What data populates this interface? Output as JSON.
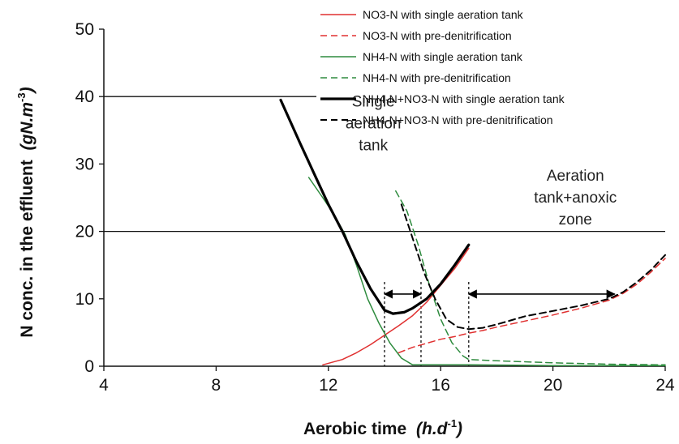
{
  "chart_data": {
    "type": "line",
    "title": "",
    "xlabel": "Aerobic time",
    "xlabel_unit": "(h.d",
    "xlabel_unit_sup": "-1",
    "xlabel_unit_close": ")",
    "ylabel": "N conc. in the effluent",
    "ylabel_unit": "(gN.m",
    "ylabel_unit_sup": "-3",
    "ylabel_unit_close": ")",
    "xlim": [
      4,
      24
    ],
    "ylim": [
      0,
      50
    ],
    "x_ticks": [
      "4",
      "8",
      "12",
      "16",
      "20",
      "24"
    ],
    "y_ticks": [
      "0",
      "10",
      "20",
      "30",
      "40",
      "50"
    ],
    "grid": false,
    "legend_position": "top-right",
    "reference_lines": [
      40,
      20
    ],
    "series": [
      {
        "name": "NO3-N with single aeration tank",
        "color": "#e03030",
        "dash": "solid",
        "width": 1.5,
        "x": [
          11.8,
          12.5,
          13,
          13.5,
          14,
          14.5,
          15,
          15.5,
          16,
          16.5,
          17
        ],
        "y": [
          0.2,
          1,
          2,
          3.2,
          4.6,
          6,
          7.5,
          9.5,
          12,
          14.5,
          17.5
        ]
      },
      {
        "name": "NO3-N with pre-denitrification",
        "color": "#e03030",
        "dash": "dashed",
        "width": 1.5,
        "x": [
          14.5,
          15,
          15.5,
          16,
          16.5,
          17,
          17.5,
          18,
          19,
          20,
          21,
          22,
          22.5,
          23,
          23.5,
          24
        ],
        "y": [
          2,
          2.8,
          3.4,
          4,
          4.4,
          4.9,
          5.3,
          5.8,
          6.7,
          7.6,
          8.6,
          9.8,
          10.8,
          12.2,
          14,
          16
        ]
      },
      {
        "name": "NH4-N with single aeration tank",
        "color": "#2e8b3e",
        "dash": "solid",
        "width": 1.5,
        "x": [
          11.3,
          11.8,
          12.2,
          12.6,
          13,
          13.4,
          13.8,
          14.2,
          14.6,
          15,
          17,
          20,
          24
        ],
        "y": [
          28,
          25,
          22.5,
          19.5,
          15,
          10,
          6.4,
          3.4,
          1.2,
          0.2,
          0.2,
          0.1,
          0.1
        ]
      },
      {
        "name": "NH4-N with pre-denitrification",
        "color": "#2e8b3e",
        "dash": "dashed",
        "width": 1.5,
        "x": [
          14.4,
          14.8,
          15.2,
          15.6,
          16,
          16.4,
          16.8,
          17,
          18,
          20,
          22,
          24
        ],
        "y": [
          26,
          23,
          18,
          12,
          7,
          3.5,
          1.5,
          1,
          0.8,
          0.5,
          0.3,
          0.2
        ]
      },
      {
        "name": "NH4-N+NO3-N with single aeration tank",
        "color": "#000000",
        "dash": "solid",
        "width": 3.2,
        "x": [
          10.3,
          11,
          11.5,
          12,
          12.5,
          13,
          13.5,
          14,
          14.3,
          14.7,
          15,
          15.5,
          16,
          16.5,
          17
        ],
        "y": [
          39.5,
          33,
          28.5,
          24,
          20,
          15.5,
          11.5,
          8.3,
          7.8,
          8,
          8.6,
          10,
          12.2,
          15,
          18
        ]
      },
      {
        "name": "NH4-N+NO3-N with pre-denitrification",
        "color": "#000000",
        "dash": "dashed",
        "width": 2,
        "x": [
          14.6,
          15,
          15.4,
          15.8,
          16.2,
          16.6,
          17,
          17.5,
          18,
          19,
          20,
          21,
          22,
          22.5,
          23,
          23.5,
          24
        ],
        "y": [
          24,
          19,
          14,
          10,
          7,
          5.8,
          5.5,
          5.7,
          6.2,
          7.4,
          8.2,
          9,
          10,
          11,
          12.5,
          14.3,
          16.5
        ]
      }
    ],
    "annotations": [
      {
        "lines": [
          "Single",
          "aeration",
          "tank"
        ],
        "x": 13.6,
        "y": 38.5
      },
      {
        "lines": [
          "Aeration",
          "tank+anoxic",
          "zone"
        ],
        "x": 20.8,
        "y": 27.5
      }
    ],
    "range_markers": [
      {
        "from": 14.0,
        "to": 15.3,
        "y": 10.7
      },
      {
        "from": 17.0,
        "to": 22.2,
        "y": 10.7
      }
    ],
    "dotted_verticals": [
      {
        "x": 14.0,
        "y_top": 12.5
      },
      {
        "x": 15.3,
        "y_top": 12.5
      },
      {
        "x": 17.0,
        "y_top": 12.5
      }
    ]
  }
}
